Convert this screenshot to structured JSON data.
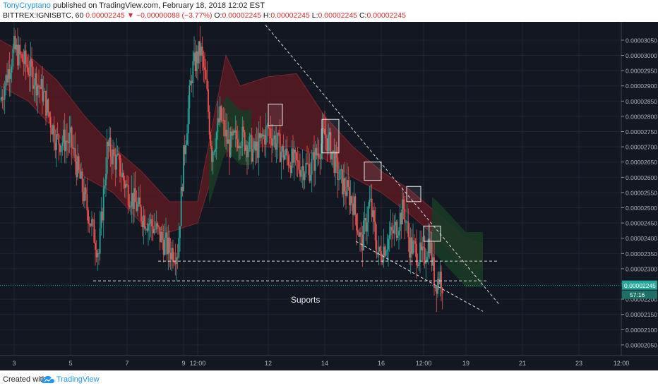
{
  "header": {
    "author": "TonyCryptano",
    "published_text": "published on TradingView.com, February 18, 2018 12:02 EST",
    "symbol": "BITTREX:IGNISBTC, 60",
    "last": "0.00002245",
    "change_arrow": "▼",
    "change": "−0.00000088 (−3.77%)",
    "ohlc_o_label": "O:",
    "ohlc_o": "0.00002245",
    "ohlc_h_label": "H:",
    "ohlc_h": "0.00002245",
    "ohlc_l_label": "L:",
    "ohlc_l": "0.00002245",
    "ohlc_c_label": "C:",
    "ohlc_c": "0.00002245"
  },
  "footer": {
    "created_label": "Created with",
    "brand": "TradingView"
  },
  "colors": {
    "background": "#131722",
    "grid": "#1f2433",
    "candle_up": "#26a69a",
    "candle_down": "#ef5350",
    "cloud_bear": "#5a1a22",
    "cloud_bull": "#1a3a25",
    "trend_line": "#d8d8d8",
    "price_line": "#26a69a",
    "box": "#e8e8e8"
  },
  "chart_data": {
    "type": "candlestick",
    "instrument": "BITTREX:IGNISBTC",
    "interval": "60",
    "annotation": "Suports",
    "current_price_label": "0.00002245",
    "countdown_label": "57:16",
    "y_ticks": [
      "0.00003050",
      "0.00003000",
      "0.00002950",
      "0.00002900",
      "0.00002850",
      "0.00002800",
      "0.00002750",
      "0.00002700",
      "0.00002650",
      "0.00002600",
      "0.00002550",
      "0.00002500",
      "0.00002450",
      "0.00002400",
      "0.00002350",
      "0.00002300",
      "0.00002250",
      "0.00002200",
      "0.00002150",
      "0.00002100",
      "0.00002050"
    ],
    "y_range": [
      2.015e-05,
      3.11e-05
    ],
    "x_ticks": [
      {
        "label": "3",
        "day": 3.0
      },
      {
        "label": "5",
        "day": 5.0
      },
      {
        "label": "7",
        "day": 7.0
      },
      {
        "label": "9",
        "day": 9.0
      },
      {
        "label": "12:00",
        "day": 9.5
      },
      {
        "label": "12",
        "day": 12.0
      },
      {
        "label": "14",
        "day": 14.0
      },
      {
        "label": "16",
        "day": 16.0
      },
      {
        "label": "12:00",
        "day": 17.5
      },
      {
        "label": "19",
        "day": 19.0
      },
      {
        "label": "21",
        "day": 21.0
      },
      {
        "label": "23",
        "day": 23.0
      },
      {
        "label": "12:00",
        "day": 24.5
      }
    ],
    "x_range_days": [
      2.5,
      24.5
    ],
    "price_path": [
      [
        2.5,
        2.85e-05
      ],
      [
        3.0,
        3.02e-05
      ],
      [
        3.5,
        2.96e-05
      ],
      [
        4.0,
        2.88e-05
      ],
      [
        4.5,
        2.72e-05
      ],
      [
        5.0,
        2.72e-05
      ],
      [
        5.5,
        2.53e-05
      ],
      [
        6.0,
        2.35e-05
      ],
      [
        6.3,
        2.7e-05
      ],
      [
        6.7,
        2.64e-05
      ],
      [
        7.0,
        2.56e-05
      ],
      [
        7.5,
        2.48e-05
      ],
      [
        8.0,
        2.43e-05
      ],
      [
        8.5,
        2.36e-05
      ],
      [
        8.8,
        2.36e-05
      ],
      [
        9.0,
        2.66e-05
      ],
      [
        9.3,
        2.95e-05
      ],
      [
        9.6,
        3.02e-05
      ],
      [
        9.8,
        2.9e-05
      ],
      [
        10.0,
        2.68e-05
      ],
      [
        10.3,
        2.8e-05
      ],
      [
        10.6,
        2.7e-05
      ],
      [
        11.0,
        2.74e-05
      ],
      [
        11.5,
        2.68e-05
      ],
      [
        12.0,
        2.76e-05
      ],
      [
        12.5,
        2.68e-05
      ],
      [
        13.0,
        2.64e-05
      ],
      [
        13.5,
        2.63e-05
      ],
      [
        14.0,
        2.74e-05
      ],
      [
        14.2,
        2.7e-05
      ],
      [
        14.5,
        2.6e-05
      ],
      [
        15.0,
        2.52e-05
      ],
      [
        15.3,
        2.38e-05
      ],
      [
        15.6,
        2.52e-05
      ],
      [
        15.9,
        2.34e-05
      ],
      [
        16.2,
        2.39e-05
      ],
      [
        16.5,
        2.43e-05
      ],
      [
        16.8,
        2.5e-05
      ],
      [
        17.0,
        2.38e-05
      ],
      [
        17.3,
        2.35e-05
      ],
      [
        17.5,
        2.33e-05
      ],
      [
        17.7,
        2.4e-05
      ],
      [
        17.9,
        2.25e-05
      ],
      [
        18.1,
        2.28e-05
      ],
      [
        18.2,
        2.245e-05
      ]
    ],
    "cloud": [
      [
        2.5,
        3.05e-05,
        2.9e-05
      ],
      [
        3.5,
        3e-05,
        2.85e-05
      ],
      [
        4.5,
        2.92e-05,
        2.75e-05
      ],
      [
        5.5,
        2.8e-05,
        2.6e-05
      ],
      [
        6.5,
        2.7e-05,
        2.55e-05
      ],
      [
        7.5,
        2.62e-05,
        2.45e-05
      ],
      [
        8.5,
        2.52e-05,
        2.42e-05
      ],
      [
        9.5,
        2.52e-05,
        2.45e-05
      ],
      [
        10.5,
        3e-05,
        2.75e-05
      ],
      [
        11.0,
        2.9e-05,
        2.7e-05
      ],
      [
        12.0,
        2.93e-05,
        2.7e-05
      ],
      [
        13.0,
        2.94e-05,
        2.7e-05
      ],
      [
        14.0,
        2.8e-05,
        2.66e-05
      ],
      [
        15.0,
        2.7e-05,
        2.6e-05
      ],
      [
        16.0,
        2.62e-05,
        2.55e-05
      ],
      [
        17.0,
        2.56e-05,
        2.48e-05
      ],
      [
        18.0,
        2.48e-05,
        2.4e-05
      ],
      [
        19.0,
        2.4e-05,
        2.3e-05
      ],
      [
        19.6,
        2.38e-05,
        2.3e-05
      ]
    ],
    "bull_cloud_spans": [
      [
        9.9,
        11.4
      ],
      [
        17.8,
        19.6
      ]
    ],
    "boxes": [
      {
        "d0": 12.0,
        "d1": 12.5,
        "p0": 2.77e-05,
        "p1": 2.84e-05
      },
      {
        "d0": 13.9,
        "d1": 14.5,
        "p0": 2.68e-05,
        "p1": 2.79e-05
      },
      {
        "d0": 15.4,
        "d1": 16.0,
        "p0": 2.59e-05,
        "p1": 2.65e-05
      },
      {
        "d0": 16.9,
        "d1": 17.4,
        "p0": 2.52e-05,
        "p1": 2.57e-05
      },
      {
        "d0": 17.5,
        "d1": 18.1,
        "p0": 2.39e-05,
        "p1": 2.44e-05
      }
    ],
    "trend_lines": [
      {
        "d0": 11.9,
        "p0": 3.1e-05,
        "d1": 20.2,
        "p1": 2.18e-05
      },
      {
        "d0": 15.1,
        "p0": 2.39e-05,
        "d1": 19.6,
        "p1": 2.16e-05
      },
      {
        "d0": 8.1,
        "p0": 2.325e-05,
        "d1": 20.1,
        "p1": 2.325e-05
      },
      {
        "d0": 5.8,
        "p0": 2.26e-05,
        "d1": 19.8,
        "p1": 2.26e-05
      }
    ]
  }
}
